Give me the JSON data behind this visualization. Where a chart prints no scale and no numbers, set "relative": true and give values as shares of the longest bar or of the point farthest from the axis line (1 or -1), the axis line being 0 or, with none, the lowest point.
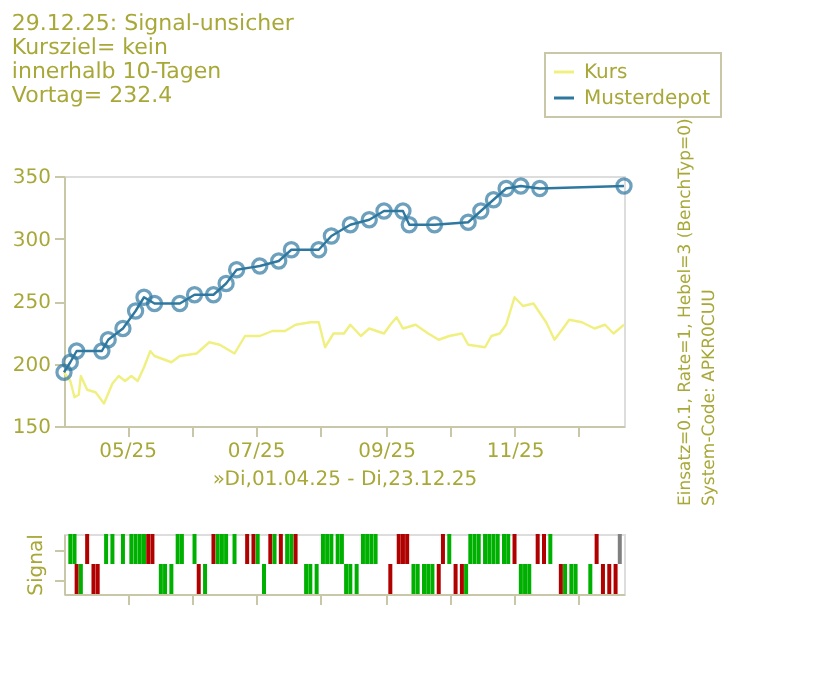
{
  "chart_data": [
    {
      "type": "line",
      "subtitle": "29.12.25: Signal-unsicher\nKursziel= kein\ninnerhalb 10-Tagen\nVortag= 232.4",
      "xlabel": "»Di,01.04.25 - Di,23.12.25",
      "xlim": [
        "2025-04-01",
        "2025-12-23"
      ],
      "ylim": [
        150,
        350
      ],
      "yticks": [
        150,
        200,
        250,
        300,
        350
      ],
      "xticks": [
        {
          "value": "2025-05-01",
          "label": "05/25"
        },
        {
          "value": "2025-06-01",
          "label": null
        },
        {
          "value": "2025-07-01",
          "label": "07/25"
        },
        {
          "value": "2025-08-01",
          "label": null
        },
        {
          "value": "2025-09-01",
          "label": "09/25"
        },
        {
          "value": "2025-10-01",
          "label": null
        },
        {
          "value": "2025-11-01",
          "label": "11/25"
        },
        {
          "value": "2025-12-01",
          "label": null
        }
      ],
      "legend": "top right",
      "grid": false,
      "annotations": [
        "Einsatz=0.1, Rate=1, Hebel=3 (BenchTyp=0)",
        "System-Code: APKR0CUU"
      ],
      "series": [
        {
          "name": "Kurs",
          "color": "#f0f080",
          "marker": "none",
          "x": [
            "2025-04-01",
            "2025-04-04",
            "2025-04-06",
            "2025-04-08",
            "2025-04-09",
            "2025-04-12",
            "2025-04-16",
            "2025-04-20",
            "2025-04-24",
            "2025-04-27",
            "2025-04-30",
            "2025-05-03",
            "2025-05-06",
            "2025-05-09",
            "2025-05-12",
            "2025-05-14",
            "2025-05-22",
            "2025-05-26",
            "2025-06-03",
            "2025-06-09",
            "2025-06-14",
            "2025-06-21",
            "2025-06-26",
            "2025-07-03",
            "2025-07-09",
            "2025-07-15",
            "2025-07-20",
            "2025-07-27",
            "2025-07-31",
            "2025-08-03",
            "2025-08-07",
            "2025-08-12",
            "2025-08-15",
            "2025-08-20",
            "2025-08-24",
            "2025-08-31",
            "2025-09-03",
            "2025-09-06",
            "2025-09-09",
            "2025-09-15",
            "2025-09-21",
            "2025-09-26",
            "2025-10-01",
            "2025-10-07",
            "2025-10-10",
            "2025-10-18",
            "2025-10-21",
            "2025-10-25",
            "2025-10-28",
            "2025-11-01",
            "2025-11-05",
            "2025-11-10",
            "2025-11-16",
            "2025-11-20",
            "2025-11-24",
            "2025-11-27",
            "2025-12-03",
            "2025-12-09",
            "2025-12-14",
            "2025-12-18",
            "2025-12-23"
          ],
          "values": [
            193,
            186,
            173,
            175,
            190,
            179,
            177,
            168,
            184,
            190,
            186,
            190,
            186,
            197,
            210,
            206,
            201,
            206,
            208,
            217,
            215,
            208,
            222,
            222,
            226,
            226,
            231,
            233,
            233,
            213,
            224,
            224,
            231,
            222,
            228,
            224,
            231,
            237,
            228,
            231,
            224,
            219,
            222,
            224,
            215,
            213,
            222,
            224,
            231,
            253,
            246,
            248,
            233,
            219,
            228,
            235,
            233,
            228,
            231,
            224,
            231
          ]
        },
        {
          "name": "Musterdepot",
          "color": "#2e78a0",
          "marker": "circle",
          "x": [
            "2025-04-01",
            "2025-04-04",
            "2025-04-07",
            "2025-04-19",
            "2025-04-22",
            "2025-04-29",
            "2025-05-05",
            "2025-05-09",
            "2025-05-14",
            "2025-05-26",
            "2025-06-02",
            "2025-06-11",
            "2025-06-17",
            "2025-06-22",
            "2025-07-03",
            "2025-07-12",
            "2025-07-18",
            "2025-07-31",
            "2025-08-06",
            "2025-08-15",
            "2025-08-24",
            "2025-08-31",
            "2025-09-09",
            "2025-09-12",
            "2025-09-24",
            "2025-10-10",
            "2025-10-16",
            "2025-10-22",
            "2025-10-28",
            "2025-11-04",
            "2025-11-13",
            "2025-12-23"
          ],
          "values": [
            193,
            201,
            210,
            210,
            219,
            228,
            242,
            253,
            248,
            248,
            255,
            255,
            264,
            275,
            278,
            282,
            291,
            291,
            302,
            311,
            315,
            322,
            322,
            311,
            311,
            313,
            322,
            331,
            340,
            342,
            340,
            342
          ]
        }
      ]
    },
    {
      "type": "bar",
      "relative": true,
      "ylabel": "Signal",
      "tick_labels": false,
      "xlim": [
        "2025-04-01",
        "2025-12-23"
      ],
      "xticks": [
        "2025-05-01",
        "2025-06-01",
        "2025-07-01",
        "2025-08-01",
        "2025-09-01",
        "2025-10-01",
        "2025-11-01",
        "2025-12-01"
      ],
      "x": [
        "2025-04-04",
        "2025-04-06",
        "2025-04-07",
        "2025-04-09",
        "2025-04-12",
        "2025-04-15",
        "2025-04-17",
        "2025-04-21",
        "2025-04-24",
        "2025-04-29",
        "2025-05-03",
        "2025-05-05",
        "2025-05-07",
        "2025-05-09",
        "2025-05-11",
        "2025-05-13",
        "2025-05-17",
        "2025-05-19",
        "2025-05-22",
        "2025-05-25",
        "2025-05-27",
        "2025-06-02",
        "2025-06-04",
        "2025-06-07",
        "2025-06-11",
        "2025-06-13",
        "2025-06-15",
        "2025-06-17",
        "2025-06-21",
        "2025-06-27",
        "2025-06-30",
        "2025-07-02",
        "2025-07-05",
        "2025-07-08",
        "2025-07-10",
        "2025-07-13",
        "2025-07-16",
        "2025-07-18",
        "2025-07-20",
        "2025-07-25",
        "2025-07-27",
        "2025-07-30",
        "2025-08-02",
        "2025-08-04",
        "2025-08-06",
        "2025-08-09",
        "2025-08-11",
        "2025-08-13",
        "2025-08-15",
        "2025-08-18",
        "2025-08-21",
        "2025-08-23",
        "2025-08-25",
        "2025-08-27",
        "2025-09-03",
        "2025-09-07",
        "2025-09-09",
        "2025-09-11",
        "2025-09-14",
        "2025-09-16",
        "2025-09-19",
        "2025-09-21",
        "2025-09-23",
        "2025-09-26",
        "2025-09-28",
        "2025-10-01",
        "2025-10-04",
        "2025-10-07",
        "2025-10-09",
        "2025-10-11",
        "2025-10-13",
        "2025-10-15",
        "2025-10-18",
        "2025-10-20",
        "2025-10-22",
        "2025-10-24",
        "2025-10-27",
        "2025-10-29",
        "2025-11-01",
        "2025-11-04",
        "2025-11-06",
        "2025-11-08",
        "2025-11-12",
        "2025-11-15",
        "2025-11-18",
        "2025-11-23",
        "2025-11-25",
        "2025-11-28",
        "2025-11-30",
        "2025-12-07",
        "2025-12-10",
        "2025-12-13",
        "2025-12-16",
        "2025-12-19",
        "2025-12-21"
      ],
      "values": [
        1,
        1,
        -1,
        -1,
        1,
        -1,
        -1,
        1,
        1,
        1,
        1,
        1,
        1,
        1,
        1,
        1,
        -1,
        -1,
        -1,
        1,
        1,
        1,
        -1,
        -1,
        1,
        1,
        1,
        1,
        1,
        1,
        1,
        1,
        -1,
        1,
        1,
        1,
        1,
        1,
        1,
        -1,
        -1,
        -1,
        1,
        1,
        1,
        1,
        1,
        -1,
        -1,
        -1,
        1,
        1,
        1,
        1,
        -1,
        1,
        1,
        1,
        -1,
        -1,
        -1,
        -1,
        -1,
        -1,
        1,
        1,
        -1,
        -1,
        -1,
        1,
        1,
        1,
        1,
        1,
        1,
        1,
        1,
        1,
        1,
        -1,
        -1,
        -1,
        1,
        1,
        1,
        -1,
        -1,
        -1,
        -1,
        -1,
        1,
        -1,
        -1,
        -1,
        1
      ],
      "colors": [
        "#00b000",
        "#00b000",
        "#b00000",
        "#00b000",
        "#b00000",
        "#b00000",
        "#b00000",
        "#00b000",
        "#00b000",
        "#00b000",
        "#00b000",
        "#00b000",
        "#00b000",
        "#00b000",
        "#b00000",
        "#b00000",
        "#00b000",
        "#00b000",
        "#00b000",
        "#00b000",
        "#00b000",
        "#00b000",
        "#b00000",
        "#00b000",
        "#b00000",
        "#00b000",
        "#00b000",
        "#00b000",
        "#00b000",
        "#b00000",
        "#b00000",
        "#00b000",
        "#00b000",
        "#b00000",
        "#00b000",
        "#b00000",
        "#00b000",
        "#00b000",
        "#b00000",
        "#00b000",
        "#00b000",
        "#00b000",
        "#00b000",
        "#00b000",
        "#00b000",
        "#00b000",
        "#00b000",
        "#00b000",
        "#00b000",
        "#00b000",
        "#00b000",
        "#00b000",
        "#00b000",
        "#00b000",
        "#b00000",
        "#b00000",
        "#b00000",
        "#b00000",
        "#00b000",
        "#00b000",
        "#00b000",
        "#00b000",
        "#00b000",
        "#b00000",
        "#b00000",
        "#00b000",
        "#b00000",
        "#b00000",
        "#00b000",
        "#00b000",
        "#00b000",
        "#00b000",
        "#00b000",
        "#00b000",
        "#00b000",
        "#00b000",
        "#00b000",
        "#00b000",
        "#b00000",
        "#00b000",
        "#00b000",
        "#00b000",
        "#b00000",
        "#b00000",
        "#00b000",
        "#b00000",
        "#00b000",
        "#00b000",
        "#00b000",
        "#00b000",
        "#b00000",
        "#b00000",
        "#b00000",
        "#b00000",
        "#808080"
      ]
    }
  ]
}
